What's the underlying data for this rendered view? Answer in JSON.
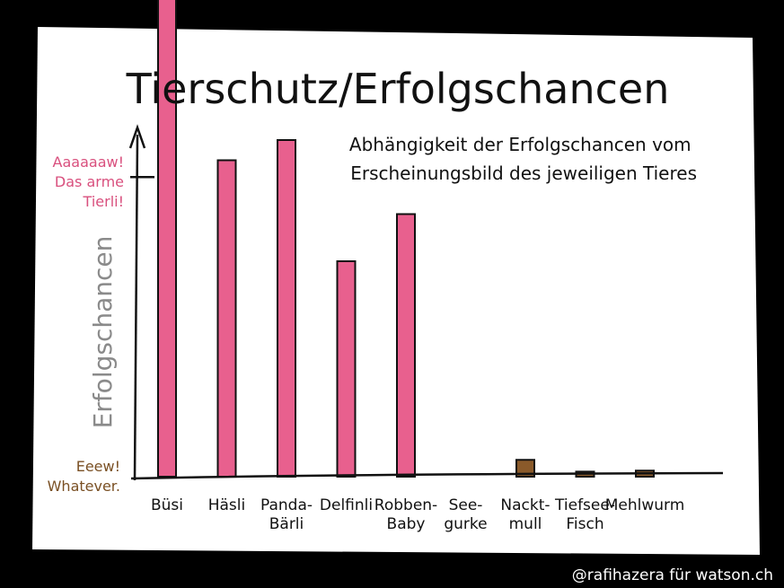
{
  "colors": {
    "background": "#000000",
    "paper": "#ffffff",
    "bar_pink": "#e8608e",
    "bar_brown": "#8a5a2a",
    "ink": "#111111",
    "label_pink": "#d9507e",
    "label_brown": "#7a5024",
    "axis_title_gray": "#8a8a8a"
  },
  "credit": "@rafihazera für watson.ch",
  "chart_data": {
    "type": "bar",
    "title": "Tierschutz/Erfolgschancen",
    "subtitle": [
      "Abhängigkeit der Erfolgschancen vom",
      "Erscheinungsbild des jeweiligen Tieres"
    ],
    "ylabel": "Erfolgschancen",
    "xlabel": "",
    "ylim": [
      0,
      100
    ],
    "y_ticks": [
      {
        "value": 0,
        "label": [
          "Eeew!",
          "Whatever."
        ]
      },
      {
        "value": 89,
        "label": [
          "Aaaaaaw!",
          "Das arme",
          "Tierli!"
        ]
      }
    ],
    "categories": [
      {
        "label": [
          "Büsi"
        ],
        "value": 150,
        "color": "pink"
      },
      {
        "label": [
          "Häsli"
        ],
        "value": 94,
        "color": "pink"
      },
      {
        "label": [
          "Panda-",
          "Bärli"
        ],
        "value": 100,
        "color": "pink"
      },
      {
        "label": [
          "Delfinli"
        ],
        "value": 64,
        "color": "pink"
      },
      {
        "label": [
          "Robben-",
          "Baby"
        ],
        "value": 78,
        "color": "pink"
      },
      {
        "label": [
          "See-",
          "gurke"
        ],
        "value": 0,
        "color": "brown"
      },
      {
        "label": [
          "Nackt-",
          "mull"
        ],
        "value": 5,
        "color": "brown"
      },
      {
        "label": [
          "Tiefsee-",
          "Fisch"
        ],
        "value": 1.5,
        "color": "brown"
      },
      {
        "label": [
          "Mehlwurm"
        ],
        "value": 1.8,
        "color": "brown"
      }
    ],
    "grid": false,
    "legend": "none"
  }
}
